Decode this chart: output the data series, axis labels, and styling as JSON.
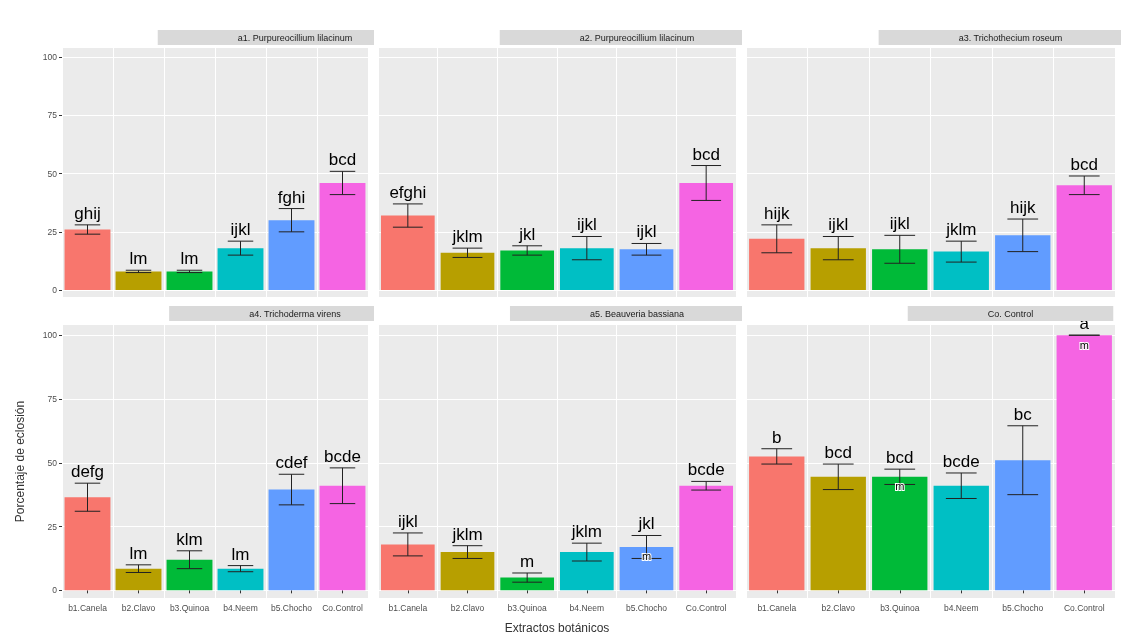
{
  "chart_data": [
    {
      "type": "bar",
      "title": "a1. Purpureocillium lilacinum",
      "categories": [
        "b1.Canela",
        "b2.Clavo",
        "b3.Quinoa",
        "b4.Neem",
        "b5.Chocho",
        "Co.Control"
      ],
      "values": [
        26,
        8,
        8,
        18,
        30,
        46
      ],
      "errors": [
        2,
        0.5,
        0.5,
        3,
        5,
        5
      ],
      "colors": [
        "#f8766d",
        "#b79f00",
        "#00ba38",
        "#00bfc4",
        "#619cff",
        "#f564e3"
      ],
      "value_labels": [
        "ghij",
        "lm",
        "lm",
        "ijkl",
        "fghi",
        "bcd"
      ],
      "ylim": [
        -3,
        104
      ],
      "yticks": [
        0,
        25,
        50,
        75,
        100
      ],
      "grid": true,
      "tick_labels": "y"
    },
    {
      "type": "bar",
      "title": "a2. Purpureocillium lilacinum",
      "categories": [
        "b1.Canela",
        "b2.Clavo",
        "b3.Quinoa",
        "b4.Neem",
        "b5.Chocho",
        "Co.Control"
      ],
      "values": [
        32,
        16,
        17,
        18,
        17.5,
        46
      ],
      "errors": [
        5,
        2,
        2,
        5,
        2.5,
        7.5
      ],
      "colors": [
        "#f8766d",
        "#b79f00",
        "#00ba38",
        "#00bfc4",
        "#619cff",
        "#f564e3"
      ],
      "value_labels": [
        "efghi",
        "jklm",
        "jkl",
        "ijkl",
        "ijkl",
        "bcd"
      ],
      "ylim": [
        -3,
        104
      ],
      "yticks": [
        0,
        25,
        50,
        75,
        100
      ],
      "grid": true,
      "tick_labels": false
    },
    {
      "type": "bar",
      "title": "a3. Trichothecium roseum",
      "categories": [
        "b1.Canela",
        "b2.Clavo",
        "b3.Quinoa",
        "b4.Neem",
        "b5.Chocho",
        "Co.Control"
      ],
      "values": [
        22,
        18,
        17.5,
        16.5,
        23.5,
        45
      ],
      "errors": [
        6,
        5,
        6,
        4.5,
        7,
        4
      ],
      "colors": [
        "#f8766d",
        "#b79f00",
        "#00ba38",
        "#00bfc4",
        "#619cff",
        "#f564e3"
      ],
      "value_labels": [
        "hijk",
        "ijkl",
        "ijkl",
        "jklm",
        "hijk",
        "bcd"
      ],
      "ylim": [
        -3,
        104
      ],
      "yticks": [
        0,
        25,
        50,
        75,
        100
      ],
      "grid": true,
      "tick_labels": false
    },
    {
      "type": "bar",
      "title": "a4. Trichoderma virens",
      "ylabel": "Porcentaje de eclosión",
      "categories": [
        "b1.Canela",
        "b2.Clavo",
        "b3.Quinoa",
        "b4.Neem",
        "b5.Chocho",
        "Co.Control"
      ],
      "values": [
        36.5,
        8.5,
        12,
        8.5,
        39.5,
        41
      ],
      "errors": [
        5.5,
        1.5,
        3.5,
        1.2,
        6,
        7
      ],
      "colors": [
        "#f8766d",
        "#b79f00",
        "#00ba38",
        "#00bfc4",
        "#619cff",
        "#f564e3"
      ],
      "value_labels": [
        "defg",
        "lm",
        "klm",
        "lm",
        "cdef",
        "bcde"
      ],
      "ylim": [
        -3,
        104
      ],
      "yticks": [
        0,
        25,
        50,
        75,
        100
      ],
      "grid": true
    },
    {
      "type": "bar",
      "title": "a5. Beauveria bassiana",
      "xlabel": "Extractos botánicos",
      "categories": [
        "b1.Canela",
        "b2.Clavo",
        "b3.Quinoa",
        "b4.Neem",
        "b5.Chocho",
        "Co.Control"
      ],
      "values": [
        18,
        15,
        5,
        15,
        17,
        41
      ],
      "errors": [
        4.5,
        2.5,
        1.8,
        3.5,
        4.5,
        1.7
      ],
      "colors": [
        "#f8766d",
        "#b79f00",
        "#00ba38",
        "#00bfc4",
        "#619cff",
        "#f564e3"
      ],
      "value_labels": [
        "ijkl",
        "jklm",
        "m",
        "jklm",
        "jkl",
        "bcde"
      ],
      "annotations": [
        {
          "text": "m",
          "x": "b5.Chocho",
          "y": 17
        }
      ],
      "ylim": [
        -3,
        104
      ],
      "yticks": [
        0,
        25,
        50,
        75,
        100
      ],
      "grid": true,
      "tick_labels": "x"
    },
    {
      "type": "bar",
      "title": "Co. Control",
      "categories": [
        "b1.Canela",
        "b2.Clavo",
        "b3.Quinoa",
        "b4.Neem",
        "b5.Chocho",
        "Co.Control"
      ],
      "values": [
        52.5,
        44.5,
        44.5,
        41,
        51,
        100
      ],
      "errors": [
        3,
        5,
        3,
        5,
        13.5,
        0
      ],
      "colors": [
        "#f8766d",
        "#b79f00",
        "#00ba38",
        "#00bfc4",
        "#619cff",
        "#f564e3"
      ],
      "value_labels": [
        "b",
        "bcd",
        "bcd",
        "bcde",
        "bc",
        "a"
      ],
      "annotations": [
        {
          "text": "m",
          "x": "b3.Quinoa",
          "y": 44.5
        },
        {
          "text": "m",
          "x": "Co.Control",
          "y": 100
        }
      ],
      "ylim": [
        -3,
        104
      ],
      "yticks": [
        0,
        25,
        50,
        75,
        100
      ],
      "grid": true,
      "tick_labels": "x"
    }
  ]
}
